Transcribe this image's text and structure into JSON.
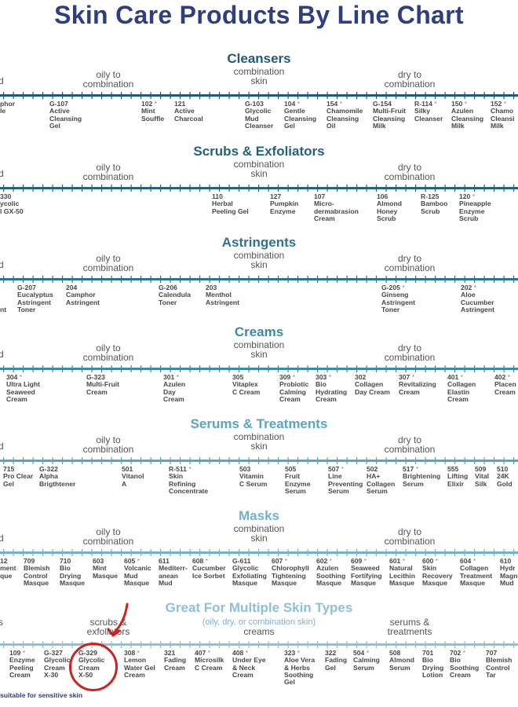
{
  "page_title": "Skin Care Products By Line Chart",
  "colors": {
    "title": "#2e3f7f",
    "cleansers": "#1f5a7a",
    "scrubs": "#22637a",
    "astringents": "#2a7490",
    "creams": "#3a8aa8",
    "serums": "#5aa4c4",
    "masks": "#6eb2d0",
    "multi": "#8fc0da",
    "highlight": "#d0201f"
  },
  "sections": [
    {
      "title": "Cleansers",
      "color_key": "cleansers",
      "cats": [
        "d",
        "oily to\ncombination",
        "combination\nskin",
        "dry to\ncombination"
      ],
      "products": [
        {
          "text": "phor\nle"
        },
        {
          "text": "G-107\nActive\nCleansing\nGel"
        },
        {
          "text": "102 *\nMint\nSouffle"
        },
        {
          "text": "121\nActive\nCharcoal"
        },
        {
          "text": "G-103\nGlycolic\nMud\nCleanser"
        },
        {
          "text": "104 *\nGentle\nCleansing\nGel"
        },
        {
          "text": "154 *\nChamomile\nCleansing\nOil"
        },
        {
          "text": "G-154\nMulti-Fruit\nCleansing\nMilk"
        },
        {
          "text": "R-114 *\nSilky\nCleanser"
        },
        {
          "text": "150 *\nAzulen\nCleansing\nMilk"
        },
        {
          "text": "152 *\nChamo\nCleansi\nMilk"
        }
      ]
    },
    {
      "title": "Scrubs & Exfoliators",
      "color_key": "scrubs",
      "cats": [
        "d",
        "oily to\ncombination",
        "combination\nskin",
        "dry to\ncombination"
      ],
      "products": [
        {
          "text": "330\nycolic\nl GX-50"
        },
        {
          "text": "110\nHerbal\nPeeling Gel"
        },
        {
          "text": "127\nPumpkin\nEnzyme"
        },
        {
          "text": "107\nMicro-\ndermabrasion\nCream"
        },
        {
          "text": "106\nAlmond\nHoney\nScrub"
        },
        {
          "text": "R-125\nBamboo\nScrub"
        },
        {
          "text": "120 *\nPineapple\nEnzyme\nScrub"
        }
      ]
    },
    {
      "title": "Astringents",
      "color_key": "astringents",
      "cats": [
        "d",
        "oily to\ncombination",
        "combination\nskin",
        "dry to\ncombination"
      ],
      "products": [
        {
          "text": "\n\n\nnt"
        },
        {
          "text": "G-207\nEucalyptus\nAstringent\nToner"
        },
        {
          "text": "204\nCamphor\nAstringent"
        },
        {
          "text": "G-206\nCalendula\nToner"
        },
        {
          "text": "203\nMenthol\nAstringent"
        },
        {
          "text": "G-205 *\nGinseng\nAstringent\nToner"
        },
        {
          "text": "202 *\nAloe\nCucumber\nAstringent"
        }
      ]
    },
    {
      "title": "Creams",
      "color_key": "creams",
      "cats": [
        "d",
        "oily to\ncombination",
        "combination\nskin",
        "dry to\ncombination"
      ],
      "products": [
        {
          "text": "304 *\nUltra Light\nSeaweed\nCream"
        },
        {
          "text": "G-323\nMulti-Fruit\nCream"
        },
        {
          "text": "301 *\nAzulen\nDay\nCream"
        },
        {
          "text": "305\nVitaplex\nC Cream"
        },
        {
          "text": "309 *\nProbiotic\nCalming\nCream"
        },
        {
          "text": "303 *\nBio\nHydrating\nCream"
        },
        {
          "text": "302\nCollagen\nDay Cream"
        },
        {
          "text": "307 *\nRevitalizing\nCream"
        },
        {
          "text": "401 *\nCollagen\nElastin\nCream"
        },
        {
          "text": "402 *\nPlacen\nCream"
        }
      ]
    },
    {
      "title": "Serums & Treatments",
      "color_key": "serums",
      "cats": [
        "d",
        "oily to\ncombination",
        "combination\nskin",
        "dry to\ncombination"
      ],
      "products": [
        {
          "text": "715\nPro Clear\nGel"
        },
        {
          "text": "G-322\nAlpha\nBrigthtener"
        },
        {
          "text": "501\nVitanol\nA"
        },
        {
          "text": "R-511 *\nSkin\nRefining\nConcentrate"
        },
        {
          "text": "503\nVitamin\nC Serum"
        },
        {
          "text": "505\nFruit\nEnzyme\nSerum"
        },
        {
          "text": "507 *\nLine\nPreventing\nSerum"
        },
        {
          "text": "502\nHA+\nCollagen\nSerum"
        },
        {
          "text": "517 *\nBrightening\nSerum"
        },
        {
          "text": "555\nLifting\nElixir"
        },
        {
          "text": "509\nVital\nSilk"
        },
        {
          "text": "510\n24K\nGold"
        }
      ]
    },
    {
      "title": "Masks",
      "color_key": "masks",
      "cats": [
        "d",
        "oily to\ncombination",
        "combination\nskin",
        "dry to\ncombination"
      ],
      "products": [
        {
          "text": "12\nment\nque"
        },
        {
          "text": "709\nBlemish\nControl\nMasque"
        },
        {
          "text": "710\nBio\nDrying\nMasque"
        },
        {
          "text": "603\nMint\nMasque"
        },
        {
          "text": "605 *\nVolcanic\nMud\nMasque"
        },
        {
          "text": "611\nMediterr-\nanean\nMud"
        },
        {
          "text": "608 *\nCucumber\nIce Sorbet"
        },
        {
          "text": "G-611\nGlycolic\nExfoliating\nMasque"
        },
        {
          "text": "607 *\nChlorophyll\nTightening\nMasque"
        },
        {
          "text": "602 *\nAzulen\nSoothing\nMasque"
        },
        {
          "text": "609 *\nSeaweed\nFortifying\nMasque"
        },
        {
          "text": "601 *\nNatural\nLecithin\nMasque"
        },
        {
          "text": "600 *\nSkin\nRecovery\nMasque"
        },
        {
          "text": "604 *\nCollagen\nTreatment\nMasque"
        },
        {
          "text": "610\nHydr\nMagn\nMud"
        }
      ]
    },
    {
      "title": "Great For Multiple Skin Types",
      "subtitle": "(oily, dry, or combination skin)",
      "color_key": "multi",
      "cats": [
        "s",
        "scrubs &\nexfoliators",
        "creams",
        "serums &\ntreatments"
      ],
      "products": [
        {
          "text": "109 *\nEnzyme\nPeeling\nCream"
        },
        {
          "text": "G-327\nGlycolic\nCream\nX-30"
        },
        {
          "text": "G-329\nGlycolic\nCream\nX-50"
        },
        {
          "text": "308 *\nLemon\nWater Gel\nCream"
        },
        {
          "text": "321\nFading\nCream"
        },
        {
          "text": "407 *\nMicrosilk\nC Cream"
        },
        {
          "text": "408 *\nUnder Eye\n& Neck\nCream"
        },
        {
          "text": "323 *\nAloe Vera\n& Herbs\nSoothing\nGel"
        },
        {
          "text": "322\nFading\nGel"
        },
        {
          "text": "504 *\nCalming\nSerum"
        },
        {
          "text": "508\nAlmond\nSerum"
        },
        {
          "text": "701\nBio\nDrying\nLotion"
        },
        {
          "text": "702 *\nBio\nSoothing\nCream"
        },
        {
          "text": "707\nBlemish\nControl\nTar"
        }
      ]
    }
  ],
  "footnote": "suitable for sensitive skin"
}
